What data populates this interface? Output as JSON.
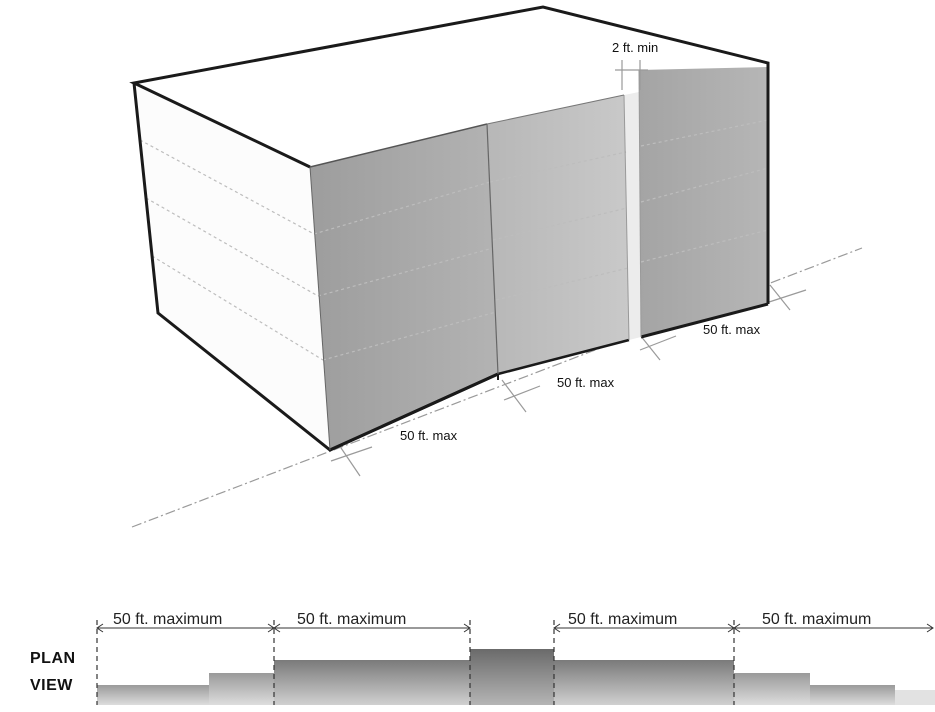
{
  "diagram": {
    "axon_labels": {
      "gap": "2 ft. min",
      "right_segment": "50 ft. max",
      "middle_segment": "50 ft. max",
      "left_segment": "50 ft. max"
    },
    "plan": {
      "title_line1": "PLAN",
      "title_line2": "VIEW",
      "dimensions": [
        "50 ft. maximum",
        "50 ft. maximum",
        "50 ft. maximum",
        "50 ft. maximum"
      ]
    },
    "colors": {
      "top_face": "#ffffff",
      "left_face": "#fbfbfb",
      "front_face": "#a7a7a7",
      "recess_face": "#bcbcbc",
      "edge": "#1a1a1a"
    }
  }
}
